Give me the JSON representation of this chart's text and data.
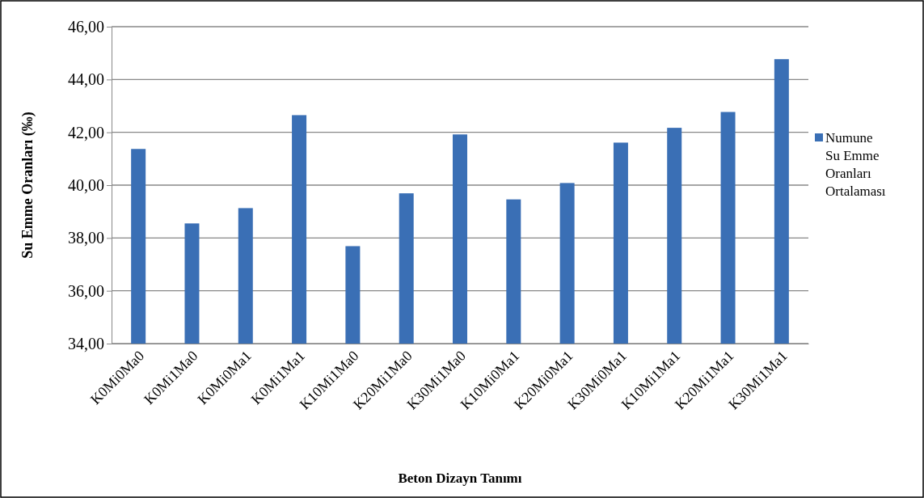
{
  "chart_data": {
    "type": "bar",
    "xlabel": "Beton Dizayn Tanımı",
    "ylabel": "Su Emme Oranları (‰)",
    "categories": [
      "K0Mi0Ma0",
      "K0Mi1Ma0",
      "K0Mi0Ma1",
      "K0Mi1Ma1",
      "K10Mi1Ma0",
      "K20Mi1Ma0",
      "K30Mi1Ma0",
      "K10Mi0Ma1",
      "K20Mi0Ma1",
      "K30Mi0Ma1",
      "K10Mi1Ma1",
      "K20Mi1Ma1",
      "K30Mi1Ma1"
    ],
    "series": [
      {
        "name": "Numune Su Emme Oranları Ortalaması",
        "color": "#3a6fb5",
        "values": [
          41.37,
          38.55,
          39.13,
          42.65,
          37.69,
          39.69,
          41.92,
          39.46,
          40.08,
          41.61,
          42.17,
          42.77,
          44.77
        ]
      }
    ],
    "ylim": [
      34,
      46
    ],
    "yticks": [
      {
        "value": 34,
        "label": "34,00"
      },
      {
        "value": 36,
        "label": "36,00"
      },
      {
        "value": 38,
        "label": "38,00"
      },
      {
        "value": 40,
        "label": "40,00"
      },
      {
        "value": 42,
        "label": "42,00"
      },
      {
        "value": 44,
        "label": "44,00"
      },
      {
        "value": 46,
        "label": "46,00"
      }
    ],
    "grid": "y",
    "legend": "right"
  }
}
